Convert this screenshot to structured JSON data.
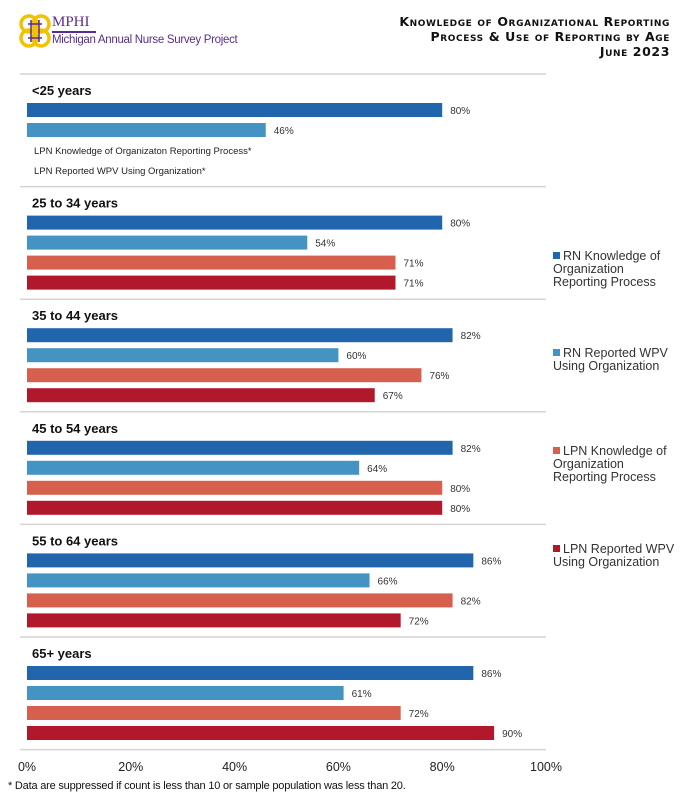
{
  "header": {
    "logo_name": "MPHI",
    "logo_subtitle": "Michigan Annual Nurse Survey Project",
    "title_lines": [
      "Knowledge of Organizational Reporting",
      "Process & Use of Reporting by Age",
      "June 2023"
    ]
  },
  "footnote": "* Data are suppressed if count is less than 10 or sample population was less than 20.",
  "chart_data": {
    "type": "bar",
    "orientation": "horizontal",
    "xlim": [
      0,
      100
    ],
    "x_ticks": [
      "0%",
      "20%",
      "40%",
      "60%",
      "80%",
      "100%"
    ],
    "legend_position": "right",
    "grid": false,
    "categories": [
      "<25 years",
      "25 to 34 years",
      "35 to 44 years",
      "45 to 54 years",
      "55 to 64 years",
      "65+ years"
    ],
    "series": [
      {
        "name": "RN Knowledge of Organization Reporting Process",
        "color": "#2166ac",
        "values": [
          80,
          80,
          82,
          82,
          86,
          86
        ]
      },
      {
        "name": "RN Reported WPV Using Organization",
        "color": "#4393c3",
        "values": [
          46,
          54,
          60,
          64,
          66,
          61
        ]
      },
      {
        "name": "LPN Knowledge of Organization Reporting Process",
        "color": "#d6604d",
        "values": [
          null,
          71,
          76,
          80,
          82,
          72
        ]
      },
      {
        "name": "LPN Reported WPV Using Organization",
        "color": "#b2182b",
        "values": [
          null,
          71,
          67,
          80,
          72,
          90
        ]
      }
    ],
    "suppressed_notes": {
      "0": [
        "LPN  Knowledge of Organizaton Reporting Process*",
        "LPN  Reported WPV Using Organization*"
      ]
    }
  }
}
